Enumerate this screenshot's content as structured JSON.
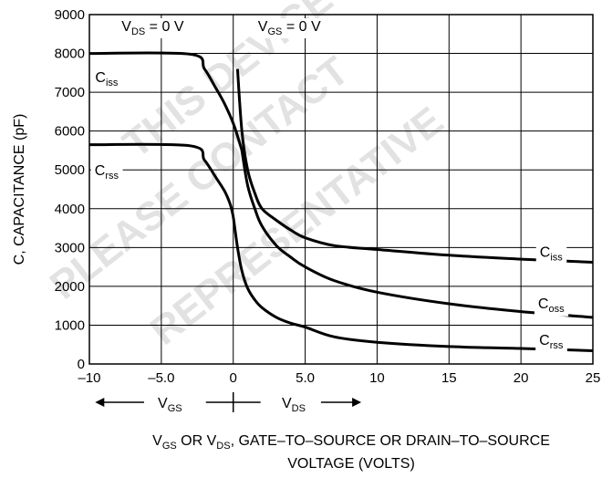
{
  "chart_data": {
    "type": "line",
    "xlabel": {
      "line1": [
        [
          "V"
        ],
        [
          "GS",
          "sub"
        ],
        [
          " OR V"
        ],
        [
          "DS",
          "sub"
        ],
        [
          ", GATE–TO–SOURCE OR DRAIN–TO–SOURCE"
        ]
      ],
      "line2": "VOLTAGE (VOLTS)"
    },
    "ylabel": "C, CAPACITANCE (pF)",
    "xlim": [
      -10,
      25
    ],
    "ylim": [
      0,
      9000
    ],
    "x_ticks": [
      -10,
      -5,
      0,
      5,
      10,
      15,
      20,
      25
    ],
    "x_tick_labels": [
      "–10",
      "–5.0",
      "0",
      "5.0",
      "10",
      "15",
      "20",
      "25"
    ],
    "y_ticks": [
      0,
      1000,
      2000,
      3000,
      4000,
      5000,
      6000,
      7000,
      8000,
      9000
    ],
    "y_tick_labels": [
      "0",
      "1000",
      "2000",
      "3000",
      "4000",
      "5000",
      "6000",
      "7000",
      "8000",
      "9000"
    ],
    "grid": true,
    "region_labels": [
      {
        "parts": [
          [
            "V"
          ],
          [
            "DS",
            "sub"
          ],
          [
            " = 0 V"
          ]
        ],
        "anchor_x": -5.6
      },
      {
        "parts": [
          [
            "V"
          ],
          [
            "GS",
            "sub"
          ],
          [
            " = 0 V"
          ]
        ],
        "anchor_x": 3.9
      }
    ],
    "axis_arrows": {
      "left": [
        [
          "V"
        ],
        [
          "GS",
          "sub"
        ]
      ],
      "right": [
        [
          "V"
        ],
        [
          "DS",
          "sub"
        ]
      ]
    },
    "series": [
      {
        "name": "Ciss (VGS side)",
        "legend": [
          [
            "C"
          ],
          [
            "iss",
            "sub"
          ]
        ],
        "x": [
          -10,
          -3,
          -2,
          -1.2,
          -0.6,
          0,
          0.4,
          0.8
        ],
        "y": [
          8000,
          7980,
          7600,
          7100,
          6700,
          6200,
          5750,
          5250
        ]
      },
      {
        "name": "Crss (VGS side)",
        "legend": [
          [
            "C"
          ],
          [
            "rss",
            "sub"
          ]
        ],
        "x": [
          -10,
          -3,
          -2,
          -1.2,
          -0.6,
          -0.2,
          0
        ],
        "y": [
          5650,
          5620,
          5250,
          4800,
          4450,
          4100,
          3800
        ]
      },
      {
        "name": "Ciss (VDS side)",
        "legend": [
          [
            "C"
          ],
          [
            "iss",
            "sub"
          ]
        ],
        "x": [
          0.3,
          0.6,
          1,
          1.5,
          2,
          3,
          4,
          5,
          7,
          10,
          15,
          20,
          25
        ],
        "y": [
          7600,
          6000,
          5000,
          4400,
          4000,
          3700,
          3450,
          3250,
          3050,
          2950,
          2800,
          2700,
          2620
        ]
      },
      {
        "name": "Coss",
        "legend": [
          [
            "C"
          ],
          [
            "oss",
            "sub"
          ]
        ],
        "x": [
          0.6,
          1,
          1.5,
          2,
          3,
          4,
          5,
          7,
          10,
          15,
          20,
          25
        ],
        "y": [
          5500,
          4600,
          4000,
          3550,
          3050,
          2750,
          2500,
          2150,
          1850,
          1550,
          1350,
          1200
        ]
      },
      {
        "name": "Crss (VDS side)",
        "legend": [
          [
            "C"
          ],
          [
            "rss",
            "sub"
          ]
        ],
        "x": [
          0,
          0.3,
          0.6,
          1,
          1.5,
          2,
          3,
          4,
          5,
          7,
          10,
          15,
          20,
          25
        ],
        "y": [
          3800,
          3000,
          2400,
          1950,
          1650,
          1450,
          1200,
          1050,
          950,
          700,
          560,
          450,
          400,
          340
        ]
      }
    ],
    "curve_labels": [
      {
        "parts": [
          [
            "C"
          ],
          [
            "iss",
            "sub"
          ]
        ],
        "at_x": -8.8,
        "at_y": 7400
      },
      {
        "parts": [
          [
            "C"
          ],
          [
            "rss",
            "sub"
          ]
        ],
        "at_x": -8.8,
        "at_y": 5000
      },
      {
        "parts": [
          [
            "C"
          ],
          [
            "iss",
            "sub"
          ]
        ],
        "at_x": 22.1,
        "at_y": 2900
      },
      {
        "parts": [
          [
            "C"
          ],
          [
            "oss",
            "sub"
          ]
        ],
        "at_x": 22.1,
        "at_y": 1580
      },
      {
        "parts": [
          [
            "C"
          ],
          [
            "rss",
            "sub"
          ]
        ],
        "at_x": 22.1,
        "at_y": 630
      }
    ],
    "watermark": [
      "THIS DEVICE IS",
      "PLEASE CONTACT",
      "REPRESENTATIVE"
    ]
  }
}
